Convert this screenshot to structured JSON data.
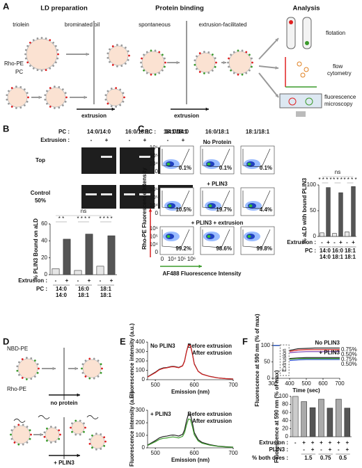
{
  "figure": {
    "panel_labels": [
      "A",
      "B",
      "C",
      "D",
      "E",
      "F"
    ],
    "a": {
      "headings": [
        "LD preparation",
        "Protein binding",
        "Analysis"
      ],
      "triolein": "triolein",
      "brominated_oil": "brominated oil",
      "rho_pe": "Rho-PE",
      "pc": "PC",
      "extrusion": "extrusion",
      "spontaneous": "spontaneous",
      "extrusion_facilitated": "extrusion-facilitated",
      "extrusion2": "extrusion",
      "flotation": "flotation",
      "flow": [
        "flow",
        "cytometry"
      ],
      "microscopy": [
        "fluorescence",
        "microscopy"
      ]
    },
    "b": {
      "pc_label": "PC :",
      "pcs": [
        "14:0/14:0",
        "16:0/18:1",
        "18:1/18:1"
      ],
      "extrusion_label": "Extrusion :",
      "extrusion": [
        "-",
        "+",
        "-",
        "+",
        "-",
        "+"
      ],
      "rows": [
        [
          "Top"
        ],
        [
          "Control",
          "50%"
        ]
      ]
    },
    "c": {
      "pc_label": "PC :",
      "pcs": [
        "14:0/14:0",
        "16:0/18:1",
        "18:1/18:1"
      ],
      "rows": [
        "No Protein",
        "+ PLIN3",
        "+ PLIN3 + extrusion"
      ],
      "percents": [
        [
          "0.1%",
          "0.1%",
          "0.1%"
        ],
        [
          "10.5%",
          "19.7%",
          "4.4%"
        ],
        [
          "99.2%",
          "98.6%",
          "99.8%"
        ]
      ],
      "y_label": "Rho-PE Fluorescence Intensity",
      "x_label": "AF488 Fluorescence Intensity",
      "x_ticks": [
        "0",
        "10⁴",
        "10⁵",
        "10⁶"
      ],
      "y_ticks": [
        "10⁶",
        "10⁵",
        "10⁴",
        "0"
      ]
    },
    "d": {
      "nbd": "NBD-PE",
      "rho": "Rho-PE",
      "no_protein": "no protein",
      "plin3": "+ PLIN3"
    }
  },
  "chart_data": [
    {
      "type": "bar",
      "y_label": "% PLIN3 Bound on aLD",
      "categories": [
        "-",
        "+",
        "-",
        "+",
        "-",
        "+"
      ],
      "category_label": "Extrusion :",
      "values": [
        7,
        42,
        5,
        48,
        10,
        46
      ],
      "colors": [
        "#e6e6e6",
        "#555555",
        "#e6e6e6",
        "#555555",
        "#e6e6e6",
        "#555555"
      ],
      "ylim": [
        0,
        60
      ],
      "yticks": [
        0,
        20,
        40,
        60
      ],
      "group_title": "PC :",
      "groups": [
        [
          "14:0",
          "14:0"
        ],
        [
          "16:0",
          "18:1"
        ],
        [
          "18:1",
          "18:1"
        ]
      ],
      "significance": [
        "ns",
        "* *",
        "* * * *",
        "* * * *"
      ]
    },
    {
      "type": "bar",
      "y_label": "% aLD with bound PLIN3",
      "categories": [
        "-",
        "+",
        "-",
        "+",
        "-",
        "+"
      ],
      "category_label": "Extrusion :",
      "values": [
        7,
        95,
        6,
        85,
        9,
        97
      ],
      "colors": [
        "#e6e6e6",
        "#555555",
        "#e6e6e6",
        "#555555",
        "#e6e6e6",
        "#555555"
      ],
      "ylim": [
        0,
        100
      ],
      "yticks": [
        0,
        50,
        100
      ],
      "group_title": "PC :",
      "groups": [
        [
          "14:0",
          "14:0"
        ],
        [
          "16:0",
          "18:1"
        ],
        [
          "18:1",
          "18:1"
        ]
      ],
      "significance": [
        "ns",
        "* * * *",
        "* * *",
        "* * * *"
      ]
    },
    {
      "type": "bar",
      "y_label": "Fluorescence at 590 nm (% of max)",
      "categories": [
        "-",
        "+",
        "+",
        "+",
        "+",
        "+",
        "+"
      ],
      "category_label": "Extrusion :",
      "rows": [
        {
          "label": "PLIN3 :",
          "values": [
            null,
            "-",
            "+",
            "-",
            "+",
            "-",
            "+"
          ]
        }
      ],
      "values": [
        100,
        87,
        72,
        93,
        71,
        93,
        71
      ],
      "colors": [
        "#cccccc",
        "#aaaaaa",
        "#555555",
        "#aaaaaa",
        "#555555",
        "#aaaaaa",
        "#555555"
      ],
      "ylim": [
        0,
        100
      ],
      "yticks": [
        0,
        20,
        40,
        60,
        80,
        100
      ],
      "group_title": "% both dyes :",
      "groups": [
        [
          "1.5"
        ],
        [
          "0.75"
        ],
        [
          "0.5"
        ]
      ]
    },
    {
      "type": "line",
      "subtitle": "No PLIN3",
      "y_label": "Fluorescence intensity (a.u.)",
      "x_label": "Emission (nm)",
      "legend": "top-right",
      "x": [
        480,
        500,
        510,
        520,
        530,
        540,
        545,
        550,
        560,
        570,
        575,
        580,
        585,
        590,
        595,
        600,
        610,
        620,
        640,
        660,
        680,
        700
      ],
      "series": [
        {
          "name": "Before extrusion",
          "color": "#222222",
          "values": [
            30,
            80,
            110,
            125,
            130,
            140,
            142,
            140,
            130,
            150,
            200,
            300,
            375,
            370,
            280,
            170,
            90,
            60,
            35,
            20,
            12,
            8
          ]
        },
        {
          "name": "After extrusion",
          "color": "#d62020",
          "values": [
            28,
            75,
            105,
            120,
            127,
            136,
            138,
            136,
            127,
            147,
            195,
            295,
            370,
            365,
            275,
            165,
            88,
            58,
            34,
            19,
            11,
            7
          ]
        }
      ],
      "xlim": [
        480,
        700
      ],
      "xticks": [
        500,
        600,
        700
      ],
      "ylim": [
        0,
        400
      ],
      "yticks": [
        0,
        100,
        200,
        300,
        400
      ]
    },
    {
      "type": "line",
      "subtitle": "+ PLIN3",
      "y_label": "Fluorescence intensity (a.u.)",
      "x_label": "Emission (nm)",
      "legend": "top-right",
      "x": [
        480,
        500,
        510,
        520,
        530,
        540,
        545,
        550,
        560,
        570,
        575,
        580,
        585,
        590,
        595,
        600,
        610,
        620,
        640,
        660,
        680,
        700
      ],
      "series": [
        {
          "name": "Before extrusion",
          "color": "#222222",
          "values": [
            22,
            58,
            79,
            90,
            94,
            101,
            102,
            101,
            94,
            108,
            144,
            216,
            270,
            266,
            202,
            122,
            65,
            43,
            25,
            14,
            9,
            6
          ]
        },
        {
          "name": "After extrusion",
          "color": "#3a9a2a",
          "values": [
            19,
            49,
            67,
            76,
            79,
            85,
            87,
            85,
            79,
            92,
            122,
            183,
            230,
            226,
            171,
            104,
            55,
            37,
            21,
            12,
            7,
            5
          ]
        }
      ],
      "xlim": [
        480,
        700
      ],
      "xticks": [
        500,
        600,
        700
      ],
      "ylim": [
        0,
        300
      ],
      "yticks": [
        0,
        100,
        200,
        300
      ]
    },
    {
      "type": "line",
      "y_label": "Fluorescence at 590 nm (% of max)",
      "x_label": "Time (sec)",
      "legend": "line-end",
      "annotations": [
        "No PLIN3",
        "+ PLIN3",
        "Extrusion"
      ],
      "x": [
        300,
        320,
        340,
        360,
        380,
        400,
        450,
        500,
        550,
        600,
        650,
        700
      ],
      "series": [
        {
          "color": "#222222",
          "values": [
            100,
            100,
            100,
            null,
            null,
            85,
            90,
            91,
            92,
            92,
            92,
            92
          ]
        },
        {
          "name": "0.75%",
          "color": "#d62020",
          "values": [
            100,
            100,
            100,
            null,
            null,
            82,
            86,
            87,
            87,
            87,
            87,
            87
          ]
        },
        {
          "name": "0.50%",
          "color": "#7a3fb0",
          "values": [
            100,
            100,
            100,
            null,
            null,
            78,
            80,
            81,
            81,
            81,
            81,
            81
          ]
        },
        {
          "color": "#222222",
          "values": [
            100,
            100,
            100,
            null,
            null,
            60,
            62,
            63,
            63,
            63,
            63,
            63
          ]
        },
        {
          "name": "0.75%",
          "color": "#3a9a2a",
          "values": [
            100,
            100,
            100,
            null,
            null,
            58,
            60,
            60,
            60,
            60,
            60,
            60
          ]
        },
        {
          "name": "0.50%",
          "color": "#2a4fd0",
          "values": [
            100,
            100,
            100,
            null,
            null,
            54,
            56,
            57,
            57,
            57,
            57,
            57
          ]
        }
      ],
      "xlim": [
        300,
        700
      ],
      "xticks": [
        300,
        400,
        500,
        600,
        700
      ],
      "ylim": [
        0,
        110
      ],
      "yticks": [
        0,
        50,
        100
      ]
    }
  ]
}
